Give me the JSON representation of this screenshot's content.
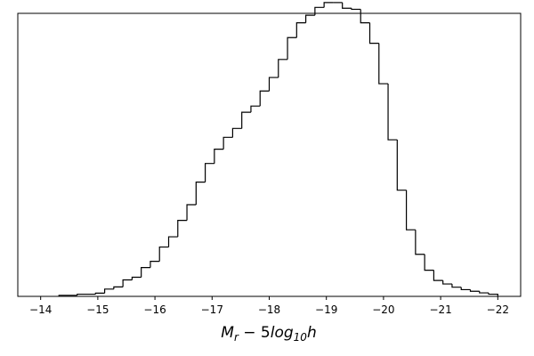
{
  "chart_data": {
    "type": "histogram",
    "title": "",
    "xlabel": "M_r − 5log_10 h",
    "xlabel_parts": {
      "m": "M",
      "m_sub": "r",
      "mid": " − 5",
      "log": "log",
      "log_sub": "10",
      "h": "h"
    },
    "ylabel": "",
    "x_inverted": true,
    "xlim": [
      -13.6,
      -22.4
    ],
    "ylim": [
      0,
      1.05
    ],
    "y_ticks_shown": false,
    "grid": false,
    "x_ticks": [
      -14,
      -15,
      -16,
      -17,
      -18,
      -19,
      -20,
      -21,
      -22
    ],
    "x_tick_labels": [
      "−14",
      "−15",
      "−16",
      "−17",
      "−18",
      "−19",
      "−20",
      "−21",
      "−22"
    ],
    "bin_edges": [
      -14.32,
      -14.64,
      -14.96,
      -15.12,
      -15.28,
      -15.44,
      -15.6,
      -15.76,
      -15.92,
      -16.08,
      -16.24,
      -16.4,
      -16.56,
      -16.72,
      -16.88,
      -17.04,
      -17.2,
      -17.36,
      -17.52,
      -17.68,
      -17.84,
      -18.0,
      -18.16,
      -18.32,
      -18.48,
      -18.64,
      -18.8,
      -18.96,
      -19.12,
      -19.28,
      -19.44,
      -19.6,
      -19.76,
      -19.92,
      -20.08,
      -20.24,
      -20.4,
      -20.56,
      -20.72,
      -20.88,
      -21.04,
      -21.2,
      -21.36,
      -21.52,
      -21.68,
      -21.84,
      -22.0
    ],
    "values": [
      0.004,
      0.008,
      0.012,
      0.027,
      0.035,
      0.061,
      0.071,
      0.107,
      0.13,
      0.183,
      0.221,
      0.282,
      0.34,
      0.424,
      0.493,
      0.546,
      0.59,
      0.623,
      0.683,
      0.706,
      0.762,
      0.812,
      0.879,
      0.96,
      1.015,
      1.043,
      1.072,
      1.09,
      1.09,
      1.069,
      1.065,
      1.015,
      0.939,
      0.789,
      0.581,
      0.394,
      0.247,
      0.156,
      0.097,
      0.059,
      0.046,
      0.034,
      0.025,
      0.019,
      0.013,
      0.008
    ]
  }
}
